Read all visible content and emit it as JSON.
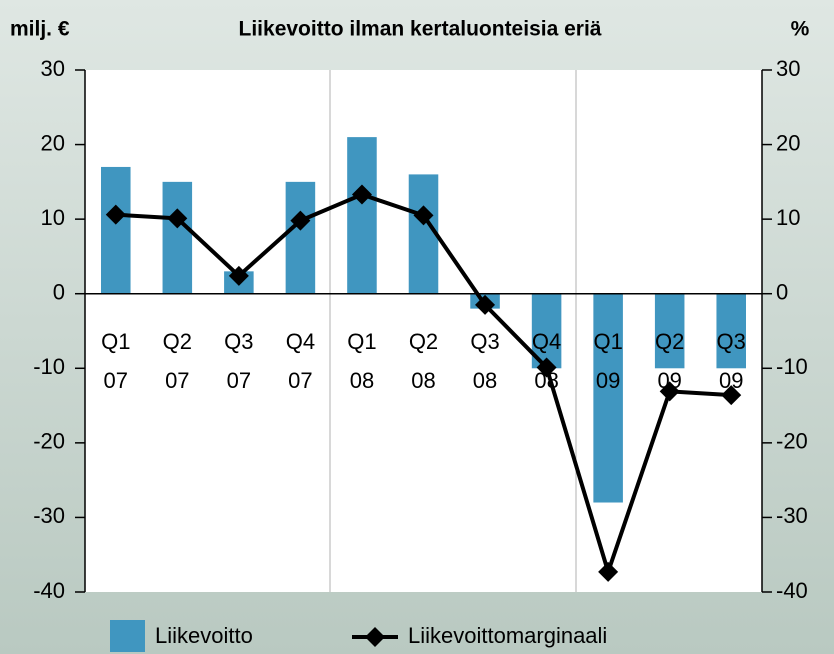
{
  "chart_data": {
    "type": "bar",
    "title": "Liikevoitto ilman kertaluonteisia eriä",
    "y_label": "milj. €",
    "y2_label": "%",
    "categories": [
      [
        "Q1",
        "07"
      ],
      [
        "Q2",
        "07"
      ],
      [
        "Q3",
        "07"
      ],
      [
        "Q4",
        "07"
      ],
      [
        "Q1",
        "08"
      ],
      [
        "Q2",
        "08"
      ],
      [
        "Q3",
        "08"
      ],
      [
        "Q4",
        "08"
      ],
      [
        "Q1",
        "09"
      ],
      [
        "Q2",
        "09"
      ],
      [
        "Q3",
        "09"
      ]
    ],
    "series": [
      {
        "name": "Liikevoitto",
        "type": "bar",
        "color": "#4096c0",
        "values": [
          17,
          15,
          3,
          15,
          21,
          16,
          -2,
          -10,
          -28,
          -10,
          -10
        ]
      },
      {
        "name": "Liikevoittomarginaali",
        "type": "line",
        "axis": "y2",
        "color": "#000000",
        "values": [
          10.6,
          10.1,
          2.4,
          9.8,
          13.3,
          10.5,
          -1.5,
          -9.9,
          -37.3,
          -13.1,
          -13.6
        ]
      }
    ],
    "ylim": [
      -40,
      30
    ],
    "yticks": [
      -40,
      -30,
      -20,
      -10,
      0,
      10,
      20,
      30
    ],
    "y2lim": [
      -40,
      30
    ],
    "y2ticks": [
      -40,
      -30,
      -20,
      -10,
      0,
      10,
      20,
      30
    ],
    "legend": "bottom"
  }
}
